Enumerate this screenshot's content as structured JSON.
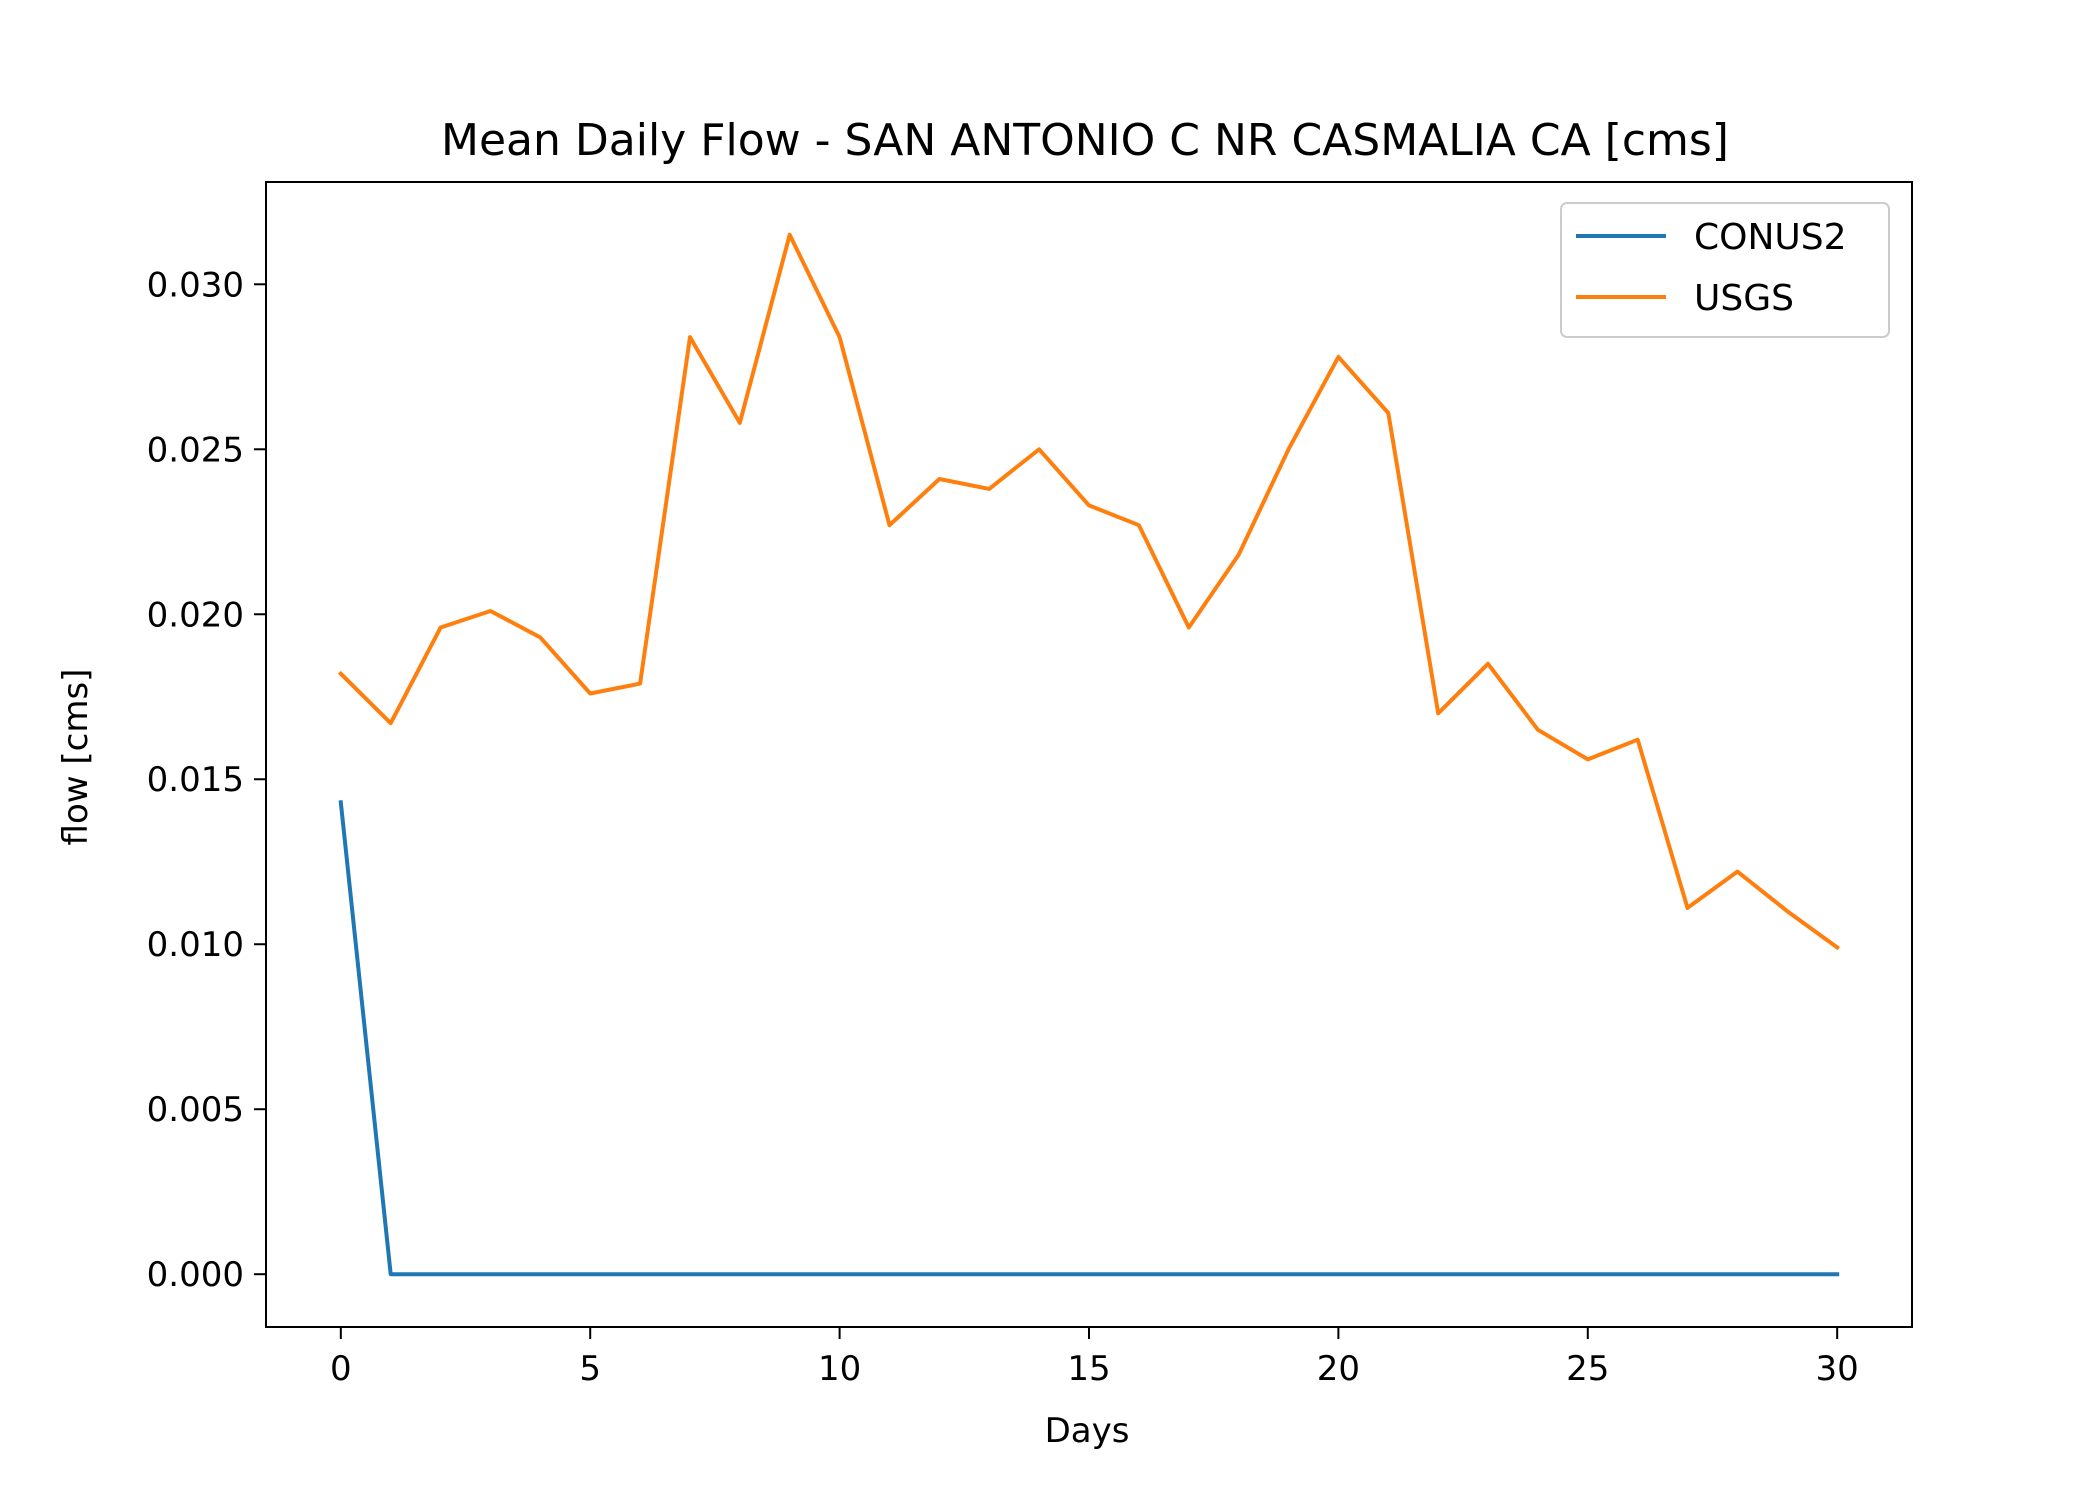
{
  "chart_data": {
    "type": "line",
    "title": "Mean Daily Flow - SAN ANTONIO C NR CASMALIA CA [cms]",
    "xlabel": "Days",
    "ylabel": "flow [cms]",
    "xlim": [
      -1.5,
      31.5
    ],
    "ylim": [
      -0.0016,
      0.0331
    ],
    "xticks": [
      0,
      5,
      10,
      15,
      20,
      25,
      30
    ],
    "xtick_labels": [
      "0",
      "5",
      "10",
      "15",
      "20",
      "25",
      "30"
    ],
    "yticks": [
      0.0,
      0.005,
      0.01,
      0.015,
      0.02,
      0.025,
      0.03
    ],
    "ytick_labels": [
      "0.000",
      "0.005",
      "0.010",
      "0.015",
      "0.020",
      "0.025",
      "0.030"
    ],
    "grid": false,
    "legend_position": "top-right",
    "series": [
      {
        "name": "CONUS2",
        "color": "#1f77b4",
        "x": [
          0,
          1,
          2,
          3,
          4,
          5,
          6,
          7,
          8,
          9,
          10,
          11,
          12,
          13,
          14,
          15,
          16,
          17,
          18,
          19,
          20,
          21,
          22,
          23,
          24,
          25,
          26,
          27,
          28,
          29,
          30
        ],
        "y": [
          0.0143,
          0.0,
          0.0,
          0.0,
          0.0,
          0.0,
          0.0,
          0.0,
          0.0,
          0.0,
          0.0,
          0.0,
          0.0,
          0.0,
          0.0,
          0.0,
          0.0,
          0.0,
          0.0,
          0.0,
          0.0,
          0.0,
          0.0,
          0.0,
          0.0,
          0.0,
          0.0,
          0.0,
          0.0,
          0.0,
          0.0
        ]
      },
      {
        "name": "USGS",
        "color": "#ff7f0e",
        "x": [
          0,
          1,
          2,
          3,
          4,
          5,
          6,
          7,
          8,
          9,
          10,
          11,
          12,
          13,
          14,
          15,
          16,
          17,
          18,
          19,
          20,
          21,
          22,
          23,
          24,
          25,
          26,
          27,
          28,
          29,
          30
        ],
        "y": [
          0.0182,
          0.0167,
          0.0196,
          0.0201,
          0.0193,
          0.0176,
          0.0179,
          0.0284,
          0.0258,
          0.0315,
          0.0284,
          0.0227,
          0.0241,
          0.0238,
          0.025,
          0.0233,
          0.0227,
          0.0196,
          0.0218,
          0.025,
          0.0278,
          0.0261,
          0.017,
          0.0185,
          0.0165,
          0.0156,
          0.0162,
          0.0111,
          0.0122,
          0.011,
          0.0099
        ]
      }
    ]
  }
}
